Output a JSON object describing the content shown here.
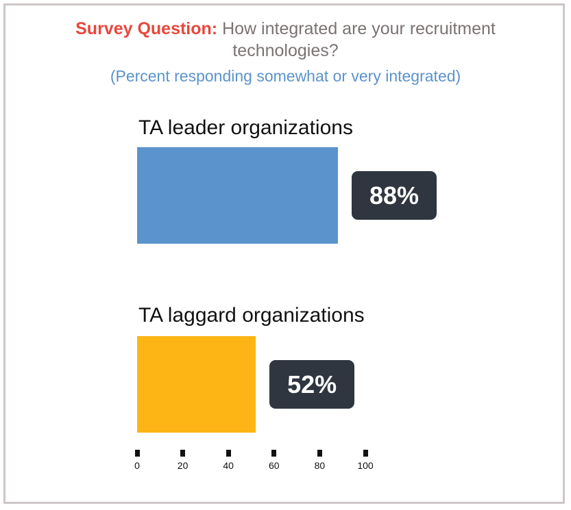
{
  "chart_data": {
    "type": "bar",
    "orientation": "horizontal",
    "title_lead": "Survey Question:",
    "title": "How integrated are your recruitment technologies?",
    "subtitle": "(Percent responding somewhat or very integrated)",
    "categories": [
      "TA leader organizations",
      "TA laggard organizations"
    ],
    "values": [
      88,
      52
    ],
    "value_labels": [
      "88%",
      "52%"
    ],
    "colors": [
      "#5b93cc",
      "#fdb515"
    ],
    "xlim": [
      0,
      100
    ],
    "ticks": [
      0,
      20,
      40,
      60,
      80,
      100
    ],
    "tick_labels": [
      "0",
      "20",
      "40",
      "60",
      "80",
      "100"
    ],
    "grid": false,
    "legend": "none"
  }
}
